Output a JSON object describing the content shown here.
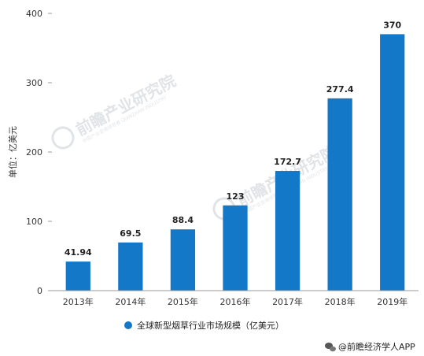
{
  "chart_data": {
    "type": "bar",
    "categories": [
      "2013年",
      "2014年",
      "2015年",
      "2016年",
      "2017年",
      "2018年",
      "2019年"
    ],
    "series": [
      {
        "name": "全球新型烟草行业市场规模（亿美元）",
        "values": [
          41.94,
          69.5,
          88.4,
          123,
          172.7,
          277.4,
          370
        ]
      }
    ],
    "data_labels": [
      "41.94",
      "69.5",
      "88.4",
      "123",
      "172.7",
      "277.4",
      "370"
    ],
    "ylabel": "单位：亿美元",
    "ylim": [
      0,
      400
    ],
    "yticks": [
      0,
      100,
      200,
      300,
      400
    ],
    "legend_position": "bottom",
    "grid": false,
    "bar_color": "#1478c8"
  },
  "watermark": {
    "text": "前瞻产业研究院",
    "subtext": "中国产业咨询领导者 QIANZHAN INDUSTRY"
  },
  "credit": {
    "icon": "wechat-icon",
    "text": "@前瞻经济学人APP"
  }
}
